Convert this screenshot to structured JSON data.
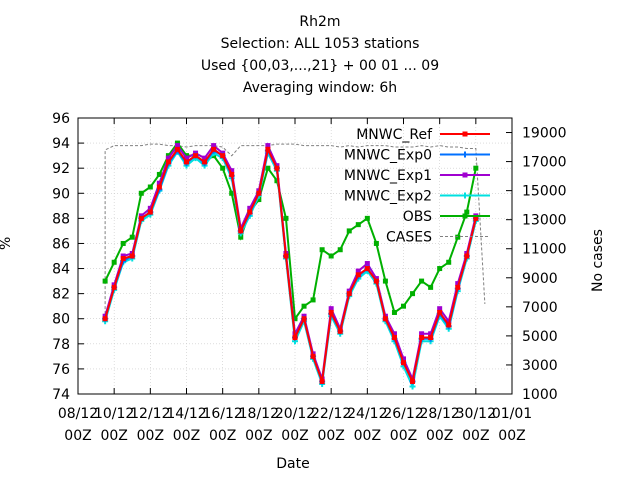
{
  "title_lines": [
    "Rh2m",
    "Selection: ALL    1053 stations",
    "Used {00,03,...,21} + 00 01 ... 09",
    "Averaging window:  6h"
  ],
  "chart_data": {
    "type": "line",
    "xlabel": "Date",
    "ylabel": "%",
    "y2label": "No cases",
    "ylim": [
      74,
      96
    ],
    "y2lim": [
      1000,
      20000
    ],
    "yticks": [
      74,
      76,
      78,
      80,
      82,
      84,
      86,
      88,
      90,
      92,
      94,
      96
    ],
    "y2ticks": [
      1000,
      3000,
      5000,
      7000,
      9000,
      11000,
      13000,
      15000,
      17000,
      19000
    ],
    "xlim": [
      "2018-12-08 00Z",
      "2019-01-01 00Z"
    ],
    "x_tick_labels": [
      "08/12",
      "10/12",
      "12/12",
      "14/12",
      "16/12",
      "18/12",
      "20/12",
      "22/12",
      "24/12",
      "26/12",
      "28/12",
      "30/12",
      "01/01"
    ],
    "x_tick_sub": "00Z",
    "legend_position": "top-right",
    "x": [
      "09.5",
      "10",
      "10.5",
      "11",
      "11.5",
      "12",
      "12.5",
      "13",
      "13.5",
      "14",
      "14.5",
      "15",
      "15.5",
      "16",
      "16.5",
      "17",
      "17.5",
      "18",
      "18.5",
      "19",
      "19.5",
      "20",
      "20.5",
      "21",
      "21.5",
      "22",
      "22.5",
      "23",
      "23.5",
      "24",
      "24.5",
      "25",
      "25.5",
      "26",
      "26.5",
      "27",
      "27.5",
      "28",
      "28.5",
      "29",
      "29.5",
      "30"
    ],
    "x_day_offsets": [
      1.5,
      2,
      2.5,
      3,
      3.5,
      4,
      4.5,
      5,
      5.5,
      6,
      6.5,
      7,
      7.5,
      8,
      8.5,
      9,
      9.5,
      10,
      10.5,
      11,
      11.5,
      12,
      12.5,
      13,
      13.5,
      14,
      14.5,
      15,
      15.5,
      16,
      16.5,
      17,
      17.5,
      18,
      18.5,
      19,
      19.5,
      20,
      20.5,
      21,
      21.5,
      22
    ],
    "series": [
      {
        "name": "MNWC_Ref",
        "color": "#ff0000",
        "marker": "square",
        "axis": "y1",
        "values": [
          80.0,
          82.5,
          84.8,
          85.0,
          88.0,
          88.5,
          90.5,
          92.5,
          93.5,
          92.5,
          93.0,
          92.5,
          93.5,
          93.0,
          91.5,
          87.0,
          88.5,
          90.0,
          93.5,
          92.0,
          85.0,
          78.5,
          80.0,
          77.0,
          75.0,
          80.5,
          79.0,
          82.0,
          83.5,
          84.0,
          83.0,
          80.0,
          78.5,
          76.5,
          75.0,
          78.5,
          78.5,
          80.5,
          79.5,
          82.5,
          85.0,
          88.0
        ]
      },
      {
        "name": "MNWC_Exp0",
        "color": "#0070ff",
        "marker": "cross",
        "axis": "y1",
        "values": [
          80.0,
          82.5,
          84.6,
          85.0,
          88.0,
          88.5,
          90.3,
          92.4,
          93.4,
          92.4,
          93.0,
          92.4,
          93.4,
          93.0,
          91.4,
          87.0,
          88.4,
          90.0,
          93.4,
          92.0,
          85.0,
          78.5,
          80.0,
          77.0,
          75.0,
          80.4,
          79.0,
          82.0,
          83.4,
          84.0,
          83.0,
          80.0,
          78.4,
          76.5,
          75.0,
          78.4,
          78.4,
          80.4,
          79.4,
          82.4,
          85.0,
          88.0
        ]
      },
      {
        "name": "MNWC_Exp1",
        "color": "#a000d0",
        "marker": "square",
        "axis": "y1",
        "values": [
          80.2,
          82.7,
          85.0,
          85.2,
          88.2,
          88.8,
          90.8,
          92.8,
          93.8,
          92.8,
          93.2,
          92.8,
          93.8,
          93.2,
          91.8,
          87.2,
          88.8,
          90.2,
          93.8,
          92.2,
          85.2,
          78.8,
          80.2,
          77.2,
          75.2,
          80.8,
          79.2,
          82.2,
          83.8,
          84.4,
          83.2,
          80.2,
          78.8,
          76.8,
          75.2,
          78.8,
          78.8,
          80.8,
          79.8,
          82.8,
          85.2,
          88.2
        ]
      },
      {
        "name": "MNWC_Exp2",
        "color": "#00e0e0",
        "marker": "cross",
        "axis": "y1",
        "values": [
          79.8,
          82.3,
          84.5,
          84.8,
          87.8,
          88.3,
          90.2,
          92.2,
          93.3,
          92.2,
          92.8,
          92.2,
          93.2,
          92.8,
          91.2,
          86.8,
          88.2,
          89.8,
          93.2,
          91.8,
          84.8,
          78.2,
          79.8,
          76.8,
          74.8,
          80.2,
          78.8,
          81.8,
          83.2,
          83.8,
          82.8,
          79.8,
          78.2,
          76.2,
          74.6,
          78.2,
          78.2,
          80.2,
          79.2,
          82.2,
          84.8,
          87.8
        ]
      },
      {
        "name": "OBS",
        "color": "#00b000",
        "marker": "filled-square",
        "axis": "y1",
        "values": [
          83.0,
          84.5,
          86.0,
          86.5,
          90.0,
          90.5,
          91.5,
          93.0,
          94.0,
          93.0,
          93.0,
          92.5,
          93.0,
          92.0,
          90.0,
          86.5,
          88.5,
          89.5,
          92.0,
          91.0,
          88.0,
          80.0,
          81.0,
          81.5,
          85.5,
          85.0,
          85.5,
          87.0,
          87.5,
          88.0,
          86.0,
          83.0,
          80.5,
          81.0,
          82.0,
          83.0,
          82.5,
          84.0,
          84.5,
          86.5,
          88.5,
          92.0
        ]
      },
      {
        "name": "CASES",
        "color": "#808080",
        "marker": "none",
        "axis": "y2",
        "dashed": true,
        "values": [
          17800,
          18100,
          18100,
          18100,
          18100,
          18200,
          18200,
          18100,
          18100,
          18000,
          18100,
          18100,
          18100,
          18000,
          17400,
          18100,
          18100,
          18100,
          18100,
          18200,
          18200,
          18200,
          18100,
          18100,
          18100,
          18100,
          18000,
          18100,
          18000,
          18100,
          18100,
          18100,
          18000,
          18000,
          18000,
          18100,
          18000,
          18100,
          18000,
          18000,
          17900,
          17900
        ]
      }
    ]
  }
}
